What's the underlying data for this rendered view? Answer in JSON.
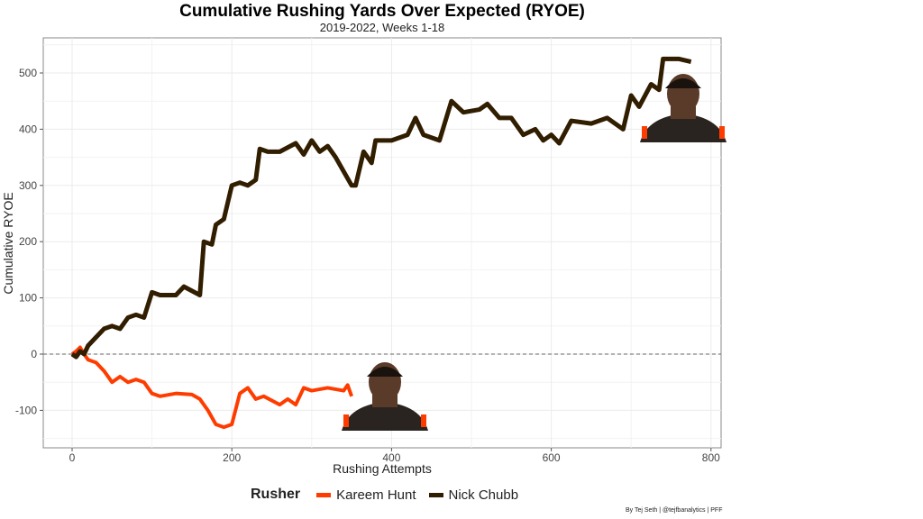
{
  "chart_data": {
    "type": "line",
    "title": "Cumulative Rushing Yards Over Expected (RYOE)",
    "subtitle": "2019-2022, Weeks 1-18",
    "xlabel": "Rushing Attempts",
    "ylabel": "Cumulative RYOE",
    "xlim": [
      -45,
      815
    ],
    "ylim": [
      -165,
      570
    ],
    "xticks": [
      0,
      200,
      400,
      600,
      800
    ],
    "yticks": [
      -100,
      0,
      100,
      200,
      300,
      400,
      500
    ],
    "grid": true,
    "reference_line": {
      "y": 0,
      "style": "dashed"
    },
    "legend": {
      "title": "Rusher",
      "placement": "bottom"
    },
    "series": [
      {
        "name": "Kareem Hunt",
        "color": "#FF3C00",
        "x": [
          0,
          5,
          10,
          15,
          20,
          30,
          40,
          50,
          60,
          70,
          80,
          90,
          100,
          110,
          130,
          150,
          160,
          170,
          180,
          190,
          200,
          210,
          220,
          230,
          240,
          260,
          270,
          280,
          290,
          300,
          320,
          340,
          345,
          350
        ],
        "y": [
          0,
          5,
          12,
          0,
          -10,
          -15,
          -30,
          -50,
          -40,
          -50,
          -45,
          -50,
          -70,
          -75,
          -70,
          -72,
          -80,
          -100,
          -125,
          -130,
          -125,
          -70,
          -60,
          -80,
          -75,
          -90,
          -80,
          -90,
          -60,
          -65,
          -60,
          -65,
          -55,
          -75
        ]
      },
      {
        "name": "Nick Chubb",
        "color": "#311D00",
        "x": [
          0,
          5,
          10,
          15,
          20,
          30,
          40,
          50,
          60,
          70,
          80,
          90,
          100,
          110,
          130,
          140,
          160,
          165,
          175,
          180,
          190,
          200,
          210,
          220,
          230,
          235,
          245,
          260,
          280,
          290,
          300,
          310,
          320,
          330,
          350,
          355,
          365,
          375,
          380,
          400,
          420,
          430,
          440,
          460,
          475,
          490,
          510,
          520,
          535,
          550,
          565,
          580,
          590,
          600,
          610,
          625,
          650,
          670,
          690,
          700,
          710,
          725,
          735,
          740,
          760,
          775
        ],
        "y": [
          0,
          -5,
          5,
          0,
          15,
          30,
          45,
          50,
          45,
          65,
          70,
          65,
          110,
          105,
          105,
          120,
          105,
          200,
          195,
          230,
          240,
          300,
          305,
          300,
          310,
          365,
          360,
          360,
          375,
          355,
          380,
          360,
          370,
          350,
          300,
          300,
          360,
          340,
          380,
          380,
          390,
          420,
          390,
          380,
          450,
          430,
          435,
          445,
          420,
          420,
          390,
          400,
          380,
          390,
          375,
          415,
          410,
          420,
          400,
          460,
          440,
          480,
          470,
          525,
          525,
          520
        ]
      }
    ]
  },
  "caption": "By Tej Seth | @tejfbanalytics | PFF"
}
